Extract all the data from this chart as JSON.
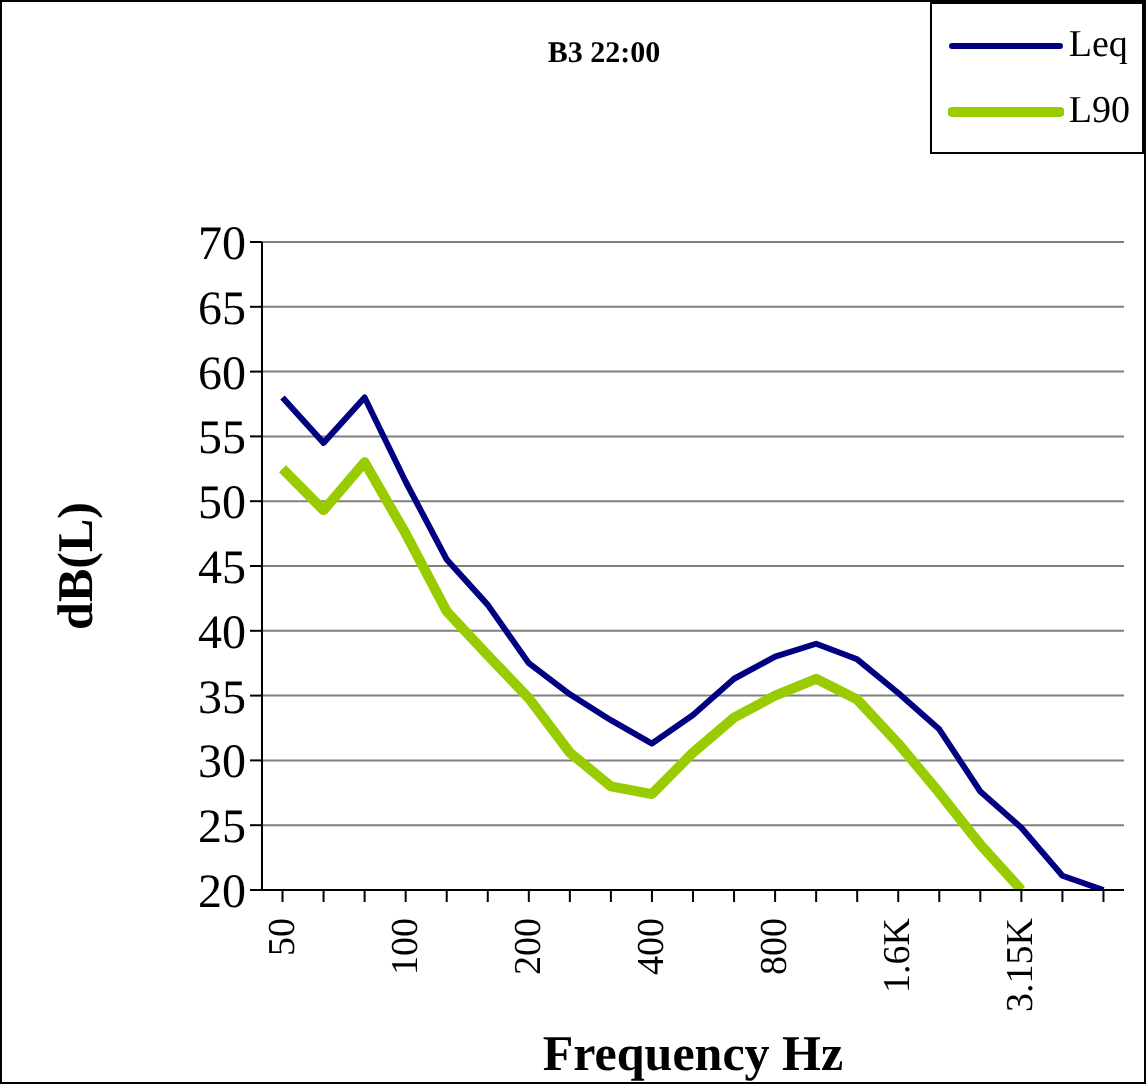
{
  "chart_data": {
    "type": "line",
    "title": "B3  22:00",
    "xlabel": "Frequency Hz",
    "ylabel": "dB(L)",
    "categories": [
      "50",
      null,
      null,
      "100",
      null,
      null,
      "200",
      null,
      null,
      "400",
      null,
      null,
      "800",
      null,
      null,
      "1.6K",
      null,
      null,
      "3.15K",
      null,
      null
    ],
    "series": [
      {
        "name": "Leq",
        "color": "#000080",
        "values": [
          58,
          54.5,
          58,
          51.5,
          45.5,
          42,
          37.5,
          35.1,
          33.1,
          31.3,
          33.5,
          36.3,
          38,
          39,
          37.8,
          35.2,
          32.4,
          27.6,
          24.8,
          21.1,
          20
        ]
      },
      {
        "name": "L90",
        "color": "#99cc00",
        "values": [
          52.5,
          49.3,
          53,
          47.5,
          41.5,
          38.1,
          34.8,
          30.6,
          28,
          27.4,
          30.6,
          33.3,
          35,
          36.3,
          34.7,
          31.3,
          27.5,
          23.5,
          20,
          null,
          null
        ]
      }
    ],
    "ylim": [
      20,
      70
    ],
    "yticks": [
      20,
      25,
      30,
      35,
      40,
      45,
      50,
      55,
      60,
      65,
      70
    ],
    "grid": "y",
    "legend": "top right",
    "marker": "none",
    "line_style": "solid"
  }
}
